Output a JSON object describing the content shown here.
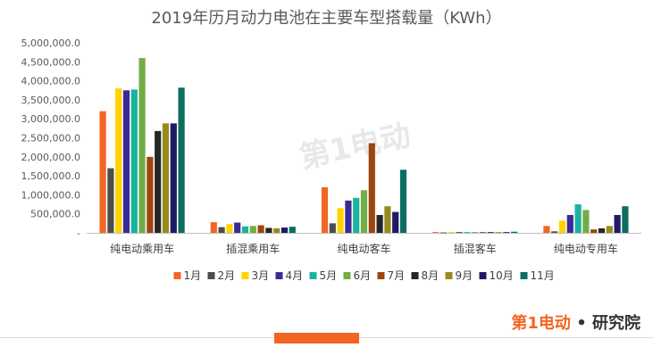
{
  "chart_data": {
    "type": "bar",
    "title": "2019年历月动力电池在主要车型搭载量（KWh）",
    "categories": [
      "纯电动乘用车",
      "插混乘用车",
      "纯电动客车",
      "插混客车",
      "纯电动专用车"
    ],
    "yticks": [
      "-",
      "500,000.0",
      "1,000,000.0",
      "1,500,000.0",
      "2,000,000.0",
      "2,500,000.0",
      "3,000,000.0",
      "3,500,000.0",
      "4,000,000.0",
      "4,500,000.0",
      "5,000,000.0"
    ],
    "ylim": [
      0,
      5000000
    ],
    "grid": false,
    "legend_position": "bottom",
    "series": [
      {
        "name": "1月",
        "color": "#f26522",
        "values": [
          3200000,
          280000,
          1200000,
          20000,
          180000
        ]
      },
      {
        "name": "2月",
        "color": "#4d4d4d",
        "values": [
          1700000,
          150000,
          250000,
          10000,
          40000
        ]
      },
      {
        "name": "3月",
        "color": "#ffd200",
        "values": [
          3800000,
          230000,
          650000,
          20000,
          320000
        ]
      },
      {
        "name": "4月",
        "color": "#3b2a94",
        "values": [
          3750000,
          270000,
          850000,
          20000,
          470000
        ]
      },
      {
        "name": "5月",
        "color": "#19b3a0",
        "values": [
          3770000,
          170000,
          920000,
          20000,
          750000
        ]
      },
      {
        "name": "6月",
        "color": "#70ad47",
        "values": [
          4600000,
          180000,
          1120000,
          20000,
          600000
        ]
      },
      {
        "name": "7月",
        "color": "#a0440e",
        "values": [
          2000000,
          200000,
          2360000,
          20000,
          90000
        ]
      },
      {
        "name": "8月",
        "color": "#262626",
        "values": [
          2680000,
          130000,
          470000,
          20000,
          120000
        ]
      },
      {
        "name": "9月",
        "color": "#998a1e",
        "values": [
          2880000,
          120000,
          700000,
          20000,
          180000
        ]
      },
      {
        "name": "10月",
        "color": "#1f1a66",
        "values": [
          2880000,
          140000,
          550000,
          20000,
          470000
        ]
      },
      {
        "name": "11月",
        "color": "#0b6e5e",
        "values": [
          3820000,
          160000,
          1660000,
          30000,
          700000
        ]
      }
    ]
  },
  "brand": {
    "logo_text": "第1电动",
    "separator": "•",
    "label": "研究院",
    "watermark": "第1电动"
  },
  "colors": {
    "accent": "#f26522"
  }
}
